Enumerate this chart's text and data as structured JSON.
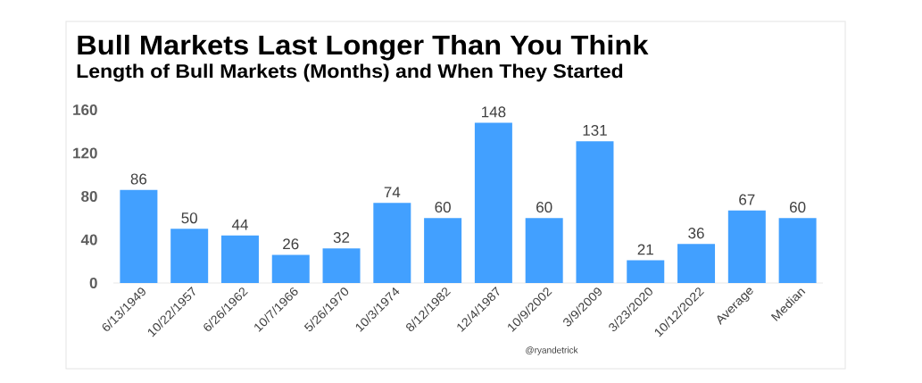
{
  "chart_data": {
    "type": "bar",
    "title": "Bull Markets Last Longer Than You Think",
    "subtitle": "Length of Bull Markets (Months) and When They Started",
    "categories": [
      "6/13/1949",
      "10/22/1957",
      "6/26/1962",
      "10/7/1966",
      "5/26/1970",
      "10/3/1974",
      "8/12/1982",
      "12/4/1987",
      "10/9/2002",
      "3/9/2009",
      "3/23/2020",
      "10/12/2022",
      "Average",
      "Median"
    ],
    "values": [
      86,
      50,
      44,
      26,
      32,
      74,
      60,
      148,
      60,
      131,
      21,
      36,
      67,
      60
    ],
    "color": "#42a0ff",
    "ylim": [
      0,
      160
    ],
    "yticks": [
      0,
      40,
      80,
      120,
      160
    ],
    "data_labels": true,
    "annotations": [
      "@ryandetrick"
    ]
  }
}
